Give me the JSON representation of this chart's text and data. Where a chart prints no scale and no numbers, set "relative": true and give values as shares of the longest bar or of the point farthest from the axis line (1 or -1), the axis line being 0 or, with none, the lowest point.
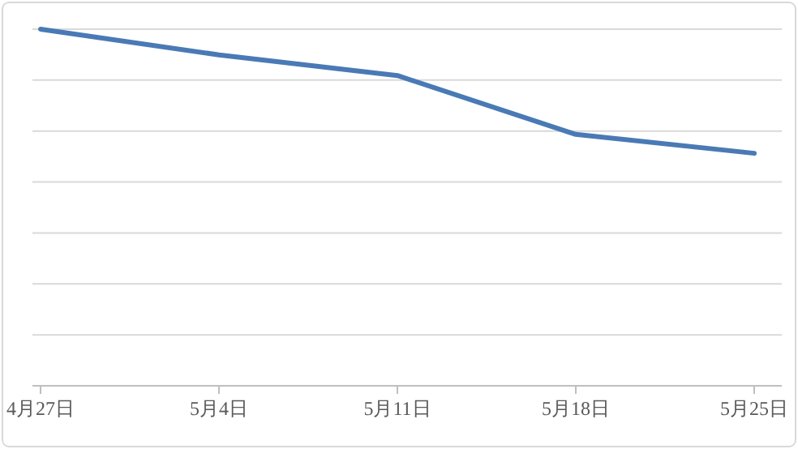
{
  "chart_data": {
    "type": "line",
    "relative": true,
    "categories": [
      "4月27日",
      "5月4日",
      "5月11日",
      "5月18日",
      "5月25日"
    ],
    "series": [
      {
        "color": "#4a7ab5",
        "values": [
          1,
          0.928,
          0.87,
          0.705,
          0.652
        ]
      }
    ],
    "grid": "y",
    "marker": "none",
    "line_style": "solid"
  }
}
